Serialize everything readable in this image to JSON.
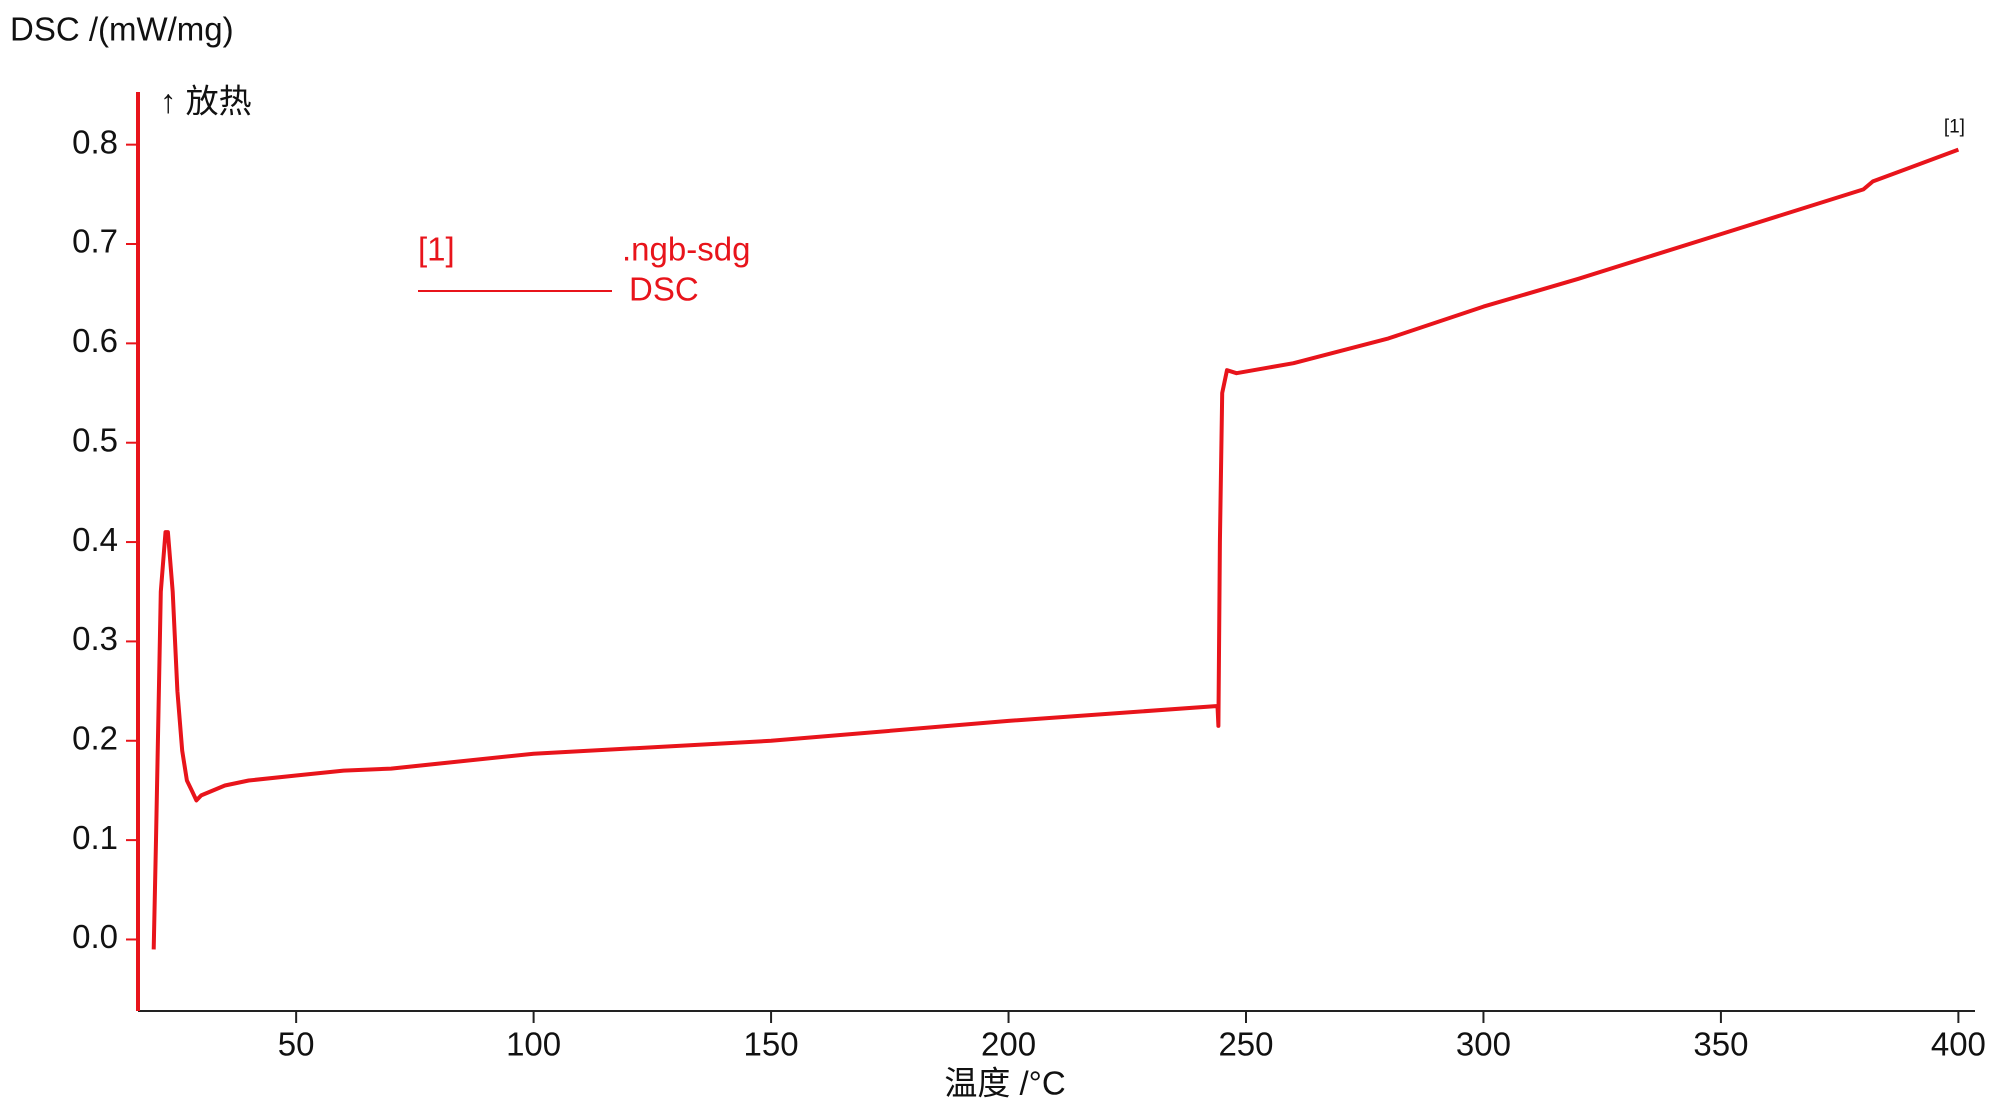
{
  "chart_data": {
    "type": "line",
    "y_label": "DSC /(mW/mg)",
    "x_label": "温度 /°C",
    "annotation": "↑ 放热",
    "legend_id": "[1]",
    "legend_file": ".ngb-sdg",
    "end_label": "[1]",
    "xlim": [
      16.7,
      403.5
    ],
    "ylim": [
      -0.072,
      0.853
    ],
    "xticks": [
      50,
      100,
      150,
      200,
      250,
      300,
      350,
      400
    ],
    "yticks": [
      {
        "value": 0,
        "label": "0.0"
      },
      0.1,
      0.2,
      0.3,
      0.4,
      0.5,
      0.6,
      0.7,
      0.8
    ],
    "series": [
      {
        "name": "DSC",
        "color": "#e8141b",
        "x": [
          20,
          20.5,
          21.5,
          22.5,
          23,
          24,
          25,
          26,
          27,
          28,
          29,
          30,
          35,
          40,
          50,
          60,
          70,
          80,
          100,
          150,
          200,
          244,
          244.2,
          244.5,
          245,
          246,
          248,
          260,
          280,
          300,
          320,
          350,
          380,
          382,
          400
        ],
        "values": [
          -0.01,
          0.1,
          0.35,
          0.41,
          0.41,
          0.35,
          0.25,
          0.19,
          0.16,
          0.15,
          0.14,
          0.145,
          0.155,
          0.16,
          0.165,
          0.17,
          0.172,
          0.177,
          0.187,
          0.2,
          0.22,
          0.235,
          0.215,
          0.4,
          0.55,
          0.573,
          0.57,
          0.58,
          0.605,
          0.637,
          0.665,
          0.71,
          0.755,
          0.763,
          0.795
        ]
      }
    ]
  }
}
